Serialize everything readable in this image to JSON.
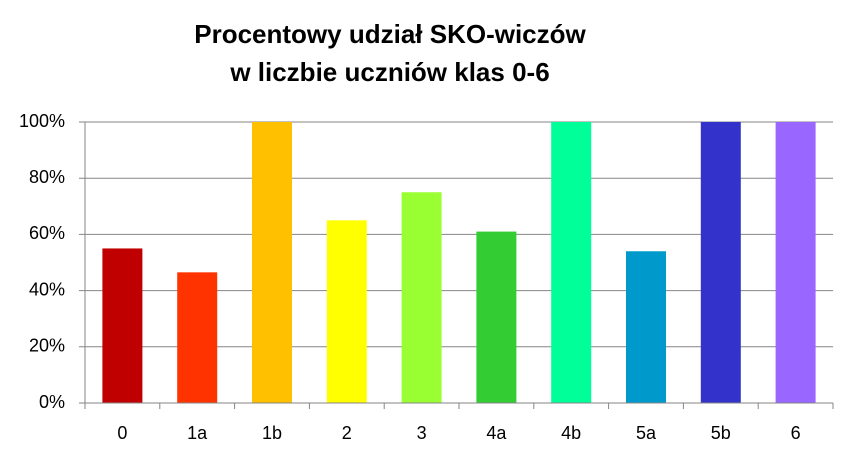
{
  "chart_data": {
    "type": "bar",
    "title": [
      "Procentowy udział SKO-wiczów",
      "w liczbie uczniów klas 0-6"
    ],
    "categories": [
      "0",
      "1a",
      "1b",
      "2",
      "3",
      "4a",
      "4b",
      "5a",
      "5b",
      "6"
    ],
    "values": [
      55,
      46.5,
      100,
      65,
      75,
      61,
      100,
      54,
      100,
      100
    ],
    "colors": [
      "#c00000",
      "#ff3300",
      "#ffc000",
      "#ffff00",
      "#99ff33",
      "#33cc33",
      "#00ff99",
      "#0099cc",
      "#3333cc",
      "#9966ff"
    ],
    "ylim": [
      0,
      100
    ],
    "yticks": [
      {
        "value": 0,
        "label": "0%"
      },
      {
        "value": 20,
        "label": "20%"
      },
      {
        "value": 40,
        "label": "40%"
      },
      {
        "value": 60,
        "label": "60%"
      },
      {
        "value": 80,
        "label": "80%"
      },
      {
        "value": 100,
        "label": "100%"
      }
    ],
    "grid": true
  }
}
